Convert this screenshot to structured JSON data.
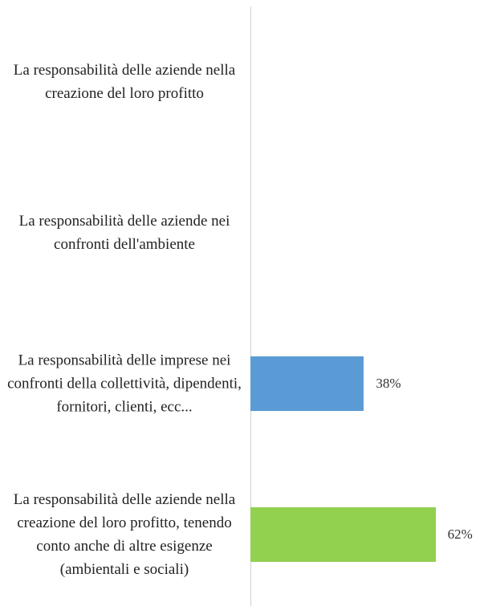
{
  "chart_data": {
    "type": "bar",
    "orientation": "horizontal",
    "categories": [
      "La responsabilità delle aziende nella creazione del loro profitto",
      "La responsabilità delle aziende nei confronti dell'ambiente",
      "La responsabilità delle imprese nei confronti della collettività, dipendenti, fornitori, clienti, ecc...",
      "La responsabilità delle aziende nella creazione del loro profitto, tenendo conto anche di altre esigenze (ambientali e sociali)"
    ],
    "values": [
      0,
      0,
      38,
      62
    ],
    "value_labels": [
      null,
      null,
      "38%",
      "62%"
    ],
    "colors": [
      "#5b9bd5",
      "#5b9bd5",
      "#5b9bd5",
      "#92d050"
    ]
  }
}
